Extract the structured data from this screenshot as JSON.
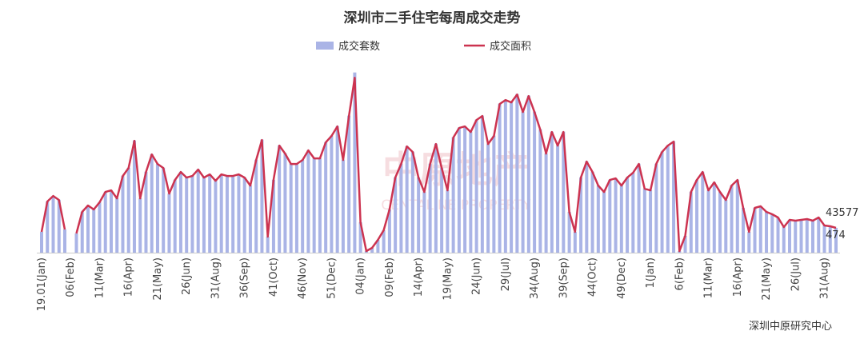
{
  "chart_data": {
    "type": "bar-line",
    "title": "深圳市二手住宅每周成交走势",
    "source": "深圳中原研究中心",
    "watermark": "中原地产",
    "watermark_en": "CENTALINE PROPERTY",
    "categories": [
      "19.01(Jan)",
      null,
      null,
      null,
      null,
      "06(Feb)",
      null,
      null,
      null,
      null,
      "11(Mar)",
      null,
      null,
      null,
      null,
      "16(Apr)",
      null,
      null,
      null,
      null,
      "21(May)",
      null,
      null,
      null,
      null,
      "26(Jun)",
      null,
      null,
      null,
      null,
      "31(Aug)",
      null,
      null,
      null,
      null,
      "36(Sep)",
      null,
      null,
      null,
      null,
      "41(Oct)",
      null,
      null,
      null,
      null,
      "46(Nov)",
      null,
      null,
      null,
      null,
      "51(Dec)",
      null,
      null,
      null,
      null,
      "04(Jan)",
      null,
      null,
      null,
      null,
      "09(Feb)",
      null,
      null,
      null,
      null,
      "14(Apr)",
      null,
      null,
      null,
      null,
      "19(May)",
      null,
      null,
      null,
      null,
      "24(Jun)",
      null,
      null,
      null,
      null,
      "29(Jul)",
      null,
      null,
      null,
      null,
      "34(Aug)",
      null,
      null,
      null,
      null,
      "39(Sep)",
      null,
      null,
      null,
      null,
      "44(Oct)",
      null,
      null,
      null,
      null,
      "49(Dec)",
      null,
      null,
      null,
      null,
      "1(Jan)",
      null,
      null,
      null,
      null,
      "6(Feb)",
      null,
      null,
      null,
      null,
      "11(Mar)",
      null,
      null,
      null,
      null,
      "16(Apr)",
      null,
      null,
      null,
      null,
      "21(May)",
      null,
      null,
      null,
      null,
      "26(Jul)",
      null,
      null,
      null,
      null,
      "31(Aug)",
      null,
      null
    ],
    "ylim": [
      0,
      3450
    ],
    "y2lim": [
      0,
      318000
    ],
    "series": [
      {
        "name": "成交套数",
        "type": "bar",
        "color": "#aab4e6",
        "values": [
          398,
          979,
          1086,
          1010,
          444,
          null,
          367,
          780,
          903,
          826,
          964,
          1163,
          1193,
          1040,
          1469,
          1622,
          2142,
          1040,
          1545,
          1882,
          1698,
          1622,
          1132,
          1392,
          1545,
          1438,
          1469,
          1591,
          1438,
          1499,
          1377,
          1499,
          1469,
          1469,
          1499,
          1438,
          1285,
          1775,
          2157,
          306,
          1392,
          2050,
          1897,
          1698,
          1698,
          1775,
          1958,
          1805,
          1805,
          2111,
          2234,
          2417,
          1775,
          2616,
          3440,
          581,
          31,
          92,
          245,
          428,
          826,
          1438,
          1698,
          2035,
          1928,
          1438,
          1163,
          1698,
          2081,
          1622,
          1193,
          2203,
          2387,
          2417,
          2310,
          2540,
          2616,
          2081,
          2234,
          2846,
          2922,
          2876,
          3029,
          2693,
          2999,
          2693,
          2356,
          1897,
          2310,
          2050,
          2310,
          780,
          398,
          1438,
          1744,
          1545,
          1285,
          1163,
          1392,
          1423,
          1285,
          1438,
          1530,
          1698,
          1224,
          1193,
          1698,
          1928,
          2050,
          2127,
          31,
          321,
          1163,
          1392,
          1545,
          1193,
          1346,
          1163,
          1010,
          1285,
          1392,
          857,
          398,
          857,
          887,
          780,
          734,
          673,
          490,
          627,
          612,
          627,
          643,
          612,
          673,
          520,
          505,
          474
        ]
      },
      {
        "name": "成交面积",
        "type": "line",
        "axis": "y2",
        "color": "#cc3350",
        "values": [
          36556,
          89984,
          99826,
          92796,
          40774,
          null,
          33744,
          71706,
          82954,
          75924,
          88578,
          106856,
          109668,
          95608,
          134976,
          149036,
          196840,
          95608,
          142006,
          172938,
          156066,
          149036,
          104044,
          127946,
          142006,
          132164,
          134976,
          146224,
          132164,
          137788,
          126540,
          137788,
          134976,
          134976,
          137788,
          132164,
          118104,
          163096,
          198246,
          28120,
          127946,
          188404,
          174344,
          156066,
          156066,
          163096,
          179968,
          165908,
          165908,
          194028,
          205276,
          222148,
          163096,
          240426,
          307914,
          53428,
          2812,
          8436,
          22496,
          39368,
          75924,
          132164,
          156066,
          186998,
          177156,
          132164,
          106856,
          156066,
          191216,
          149036,
          109668,
          202464,
          219336,
          222148,
          212306,
          233396,
          240426,
          191216,
          205276,
          261516,
          268546,
          264328,
          278388,
          247456,
          275576,
          247456,
          216524,
          174344,
          212306,
          188404,
          212306,
          71706,
          36556,
          132164,
          160284,
          142006,
          118104,
          106856,
          127946,
          130758,
          118104,
          132164,
          140600,
          156066,
          112480,
          109668,
          156066,
          177156,
          188404,
          195434,
          2812,
          29526,
          106856,
          127946,
          142006,
          109668,
          123728,
          106856,
          92796,
          118104,
          127946,
          78736,
          36556,
          78736,
          81548,
          71706,
          67488,
          61864,
          44992,
          57646,
          56240,
          57646,
          59052,
          56240,
          61864,
          47804,
          46398,
          43577
        ]
      }
    ],
    "last_value_labels": true
  }
}
